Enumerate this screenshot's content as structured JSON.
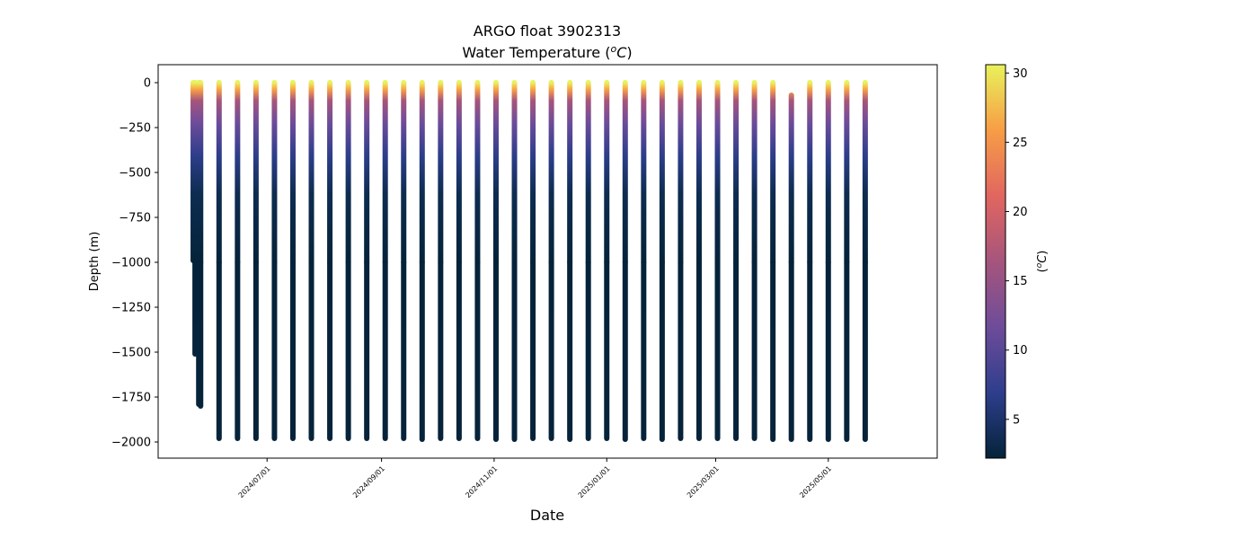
{
  "chart_data": {
    "type": "scatter",
    "title": "ARGO float 3902313",
    "subtitle_prefix": "Water Temperature (",
    "subtitle_unit_sup": "o",
    "subtitle_unit": "C",
    "subtitle_suffix": ")",
    "xlabel": "Date",
    "ylabel": "Depth (m)",
    "colorbar_label_prefix": "(",
    "colorbar_label_sup": "o",
    "colorbar_label_unit": "C",
    "colorbar_label_suffix": ")",
    "xlim": [
      "2024-05-03",
      "2025-06-29"
    ],
    "ylim": [
      -2090,
      100
    ],
    "x_ticks": [
      "2024/07/01",
      "2024/09/01",
      "2024/11/01",
      "2025/01/01",
      "2025/03/01",
      "2025/05/01"
    ],
    "y_ticks": [
      0,
      -250,
      -500,
      -750,
      -1000,
      -1250,
      -1500,
      -1750,
      -2000
    ],
    "y_tick_labels": [
      "0",
      "−250",
      "−500",
      "−750",
      "−1000",
      "−1250",
      "−1500",
      "−1750",
      "−2000"
    ],
    "colorbar": {
      "range": [
        2.2,
        30.6
      ],
      "ticks": [
        5,
        10,
        15,
        20,
        25,
        30
      ],
      "colormap": "thermal",
      "colors": [
        "#04233a",
        "#2e3e8c",
        "#6e4c9a",
        "#a6557c",
        "#e16660",
        "#f79d46",
        "#e9f25b"
      ]
    },
    "profiles": [
      {
        "date": "2024-05-22",
        "min_depth": 0,
        "max_depth": -990
      },
      {
        "date": "2024-05-23",
        "min_depth": 0,
        "max_depth": -1510
      },
      {
        "date": "2024-05-25",
        "min_depth": 0,
        "max_depth": -1790
      },
      {
        "date": "2024-05-26",
        "min_depth": 0,
        "max_depth": -1800
      },
      {
        "date": "2024-06-05",
        "min_depth": 0,
        "max_depth": -1980
      },
      {
        "date": "2024-06-15",
        "min_depth": 0,
        "max_depth": -1980
      },
      {
        "date": "2024-06-25",
        "min_depth": 0,
        "max_depth": -1980
      },
      {
        "date": "2024-07-05",
        "min_depth": 0,
        "max_depth": -1980
      },
      {
        "date": "2024-07-15",
        "min_depth": 0,
        "max_depth": -1980
      },
      {
        "date": "2024-07-25",
        "min_depth": 0,
        "max_depth": -1980
      },
      {
        "date": "2024-08-04",
        "min_depth": 0,
        "max_depth": -1980
      },
      {
        "date": "2024-08-14",
        "min_depth": 0,
        "max_depth": -1980
      },
      {
        "date": "2024-08-24",
        "min_depth": 0,
        "max_depth": -1980
      },
      {
        "date": "2024-09-03",
        "min_depth": 0,
        "max_depth": -1980
      },
      {
        "date": "2024-09-13",
        "min_depth": 0,
        "max_depth": -1980
      },
      {
        "date": "2024-09-23",
        "min_depth": 0,
        "max_depth": -1985
      },
      {
        "date": "2024-10-03",
        "min_depth": 0,
        "max_depth": -1980
      },
      {
        "date": "2024-10-13",
        "min_depth": 0,
        "max_depth": -1980
      },
      {
        "date": "2024-10-23",
        "min_depth": 0,
        "max_depth": -1980
      },
      {
        "date": "2024-11-02",
        "min_depth": 0,
        "max_depth": -1985
      },
      {
        "date": "2024-11-12",
        "min_depth": 0,
        "max_depth": -1985
      },
      {
        "date": "2024-11-22",
        "min_depth": 0,
        "max_depth": -1980
      },
      {
        "date": "2024-12-02",
        "min_depth": 0,
        "max_depth": -1980
      },
      {
        "date": "2024-12-12",
        "min_depth": 0,
        "max_depth": -1985
      },
      {
        "date": "2024-12-22",
        "min_depth": 0,
        "max_depth": -1980
      },
      {
        "date": "2025-01-01",
        "min_depth": 0,
        "max_depth": -1980
      },
      {
        "date": "2025-01-11",
        "min_depth": 0,
        "max_depth": -1985
      },
      {
        "date": "2025-01-21",
        "min_depth": 0,
        "max_depth": -1980
      },
      {
        "date": "2025-01-31",
        "min_depth": 0,
        "max_depth": -1985
      },
      {
        "date": "2025-02-10",
        "min_depth": 0,
        "max_depth": -1980
      },
      {
        "date": "2025-02-20",
        "min_depth": 0,
        "max_depth": -1980
      },
      {
        "date": "2025-03-02",
        "min_depth": 0,
        "max_depth": -1980
      },
      {
        "date": "2025-03-12",
        "min_depth": 0,
        "max_depth": -1980
      },
      {
        "date": "2025-03-22",
        "min_depth": 0,
        "max_depth": -1980
      },
      {
        "date": "2025-04-01",
        "min_depth": 0,
        "max_depth": -1985
      },
      {
        "date": "2025-04-11",
        "min_depth": -70,
        "max_depth": -1985
      },
      {
        "date": "2025-04-21",
        "min_depth": 0,
        "max_depth": -1985
      },
      {
        "date": "2025-05-01",
        "min_depth": 0,
        "max_depth": -1985
      },
      {
        "date": "2025-05-11",
        "min_depth": 0,
        "max_depth": -1985
      },
      {
        "date": "2025-05-21",
        "min_depth": 0,
        "max_depth": -1985
      }
    ]
  }
}
